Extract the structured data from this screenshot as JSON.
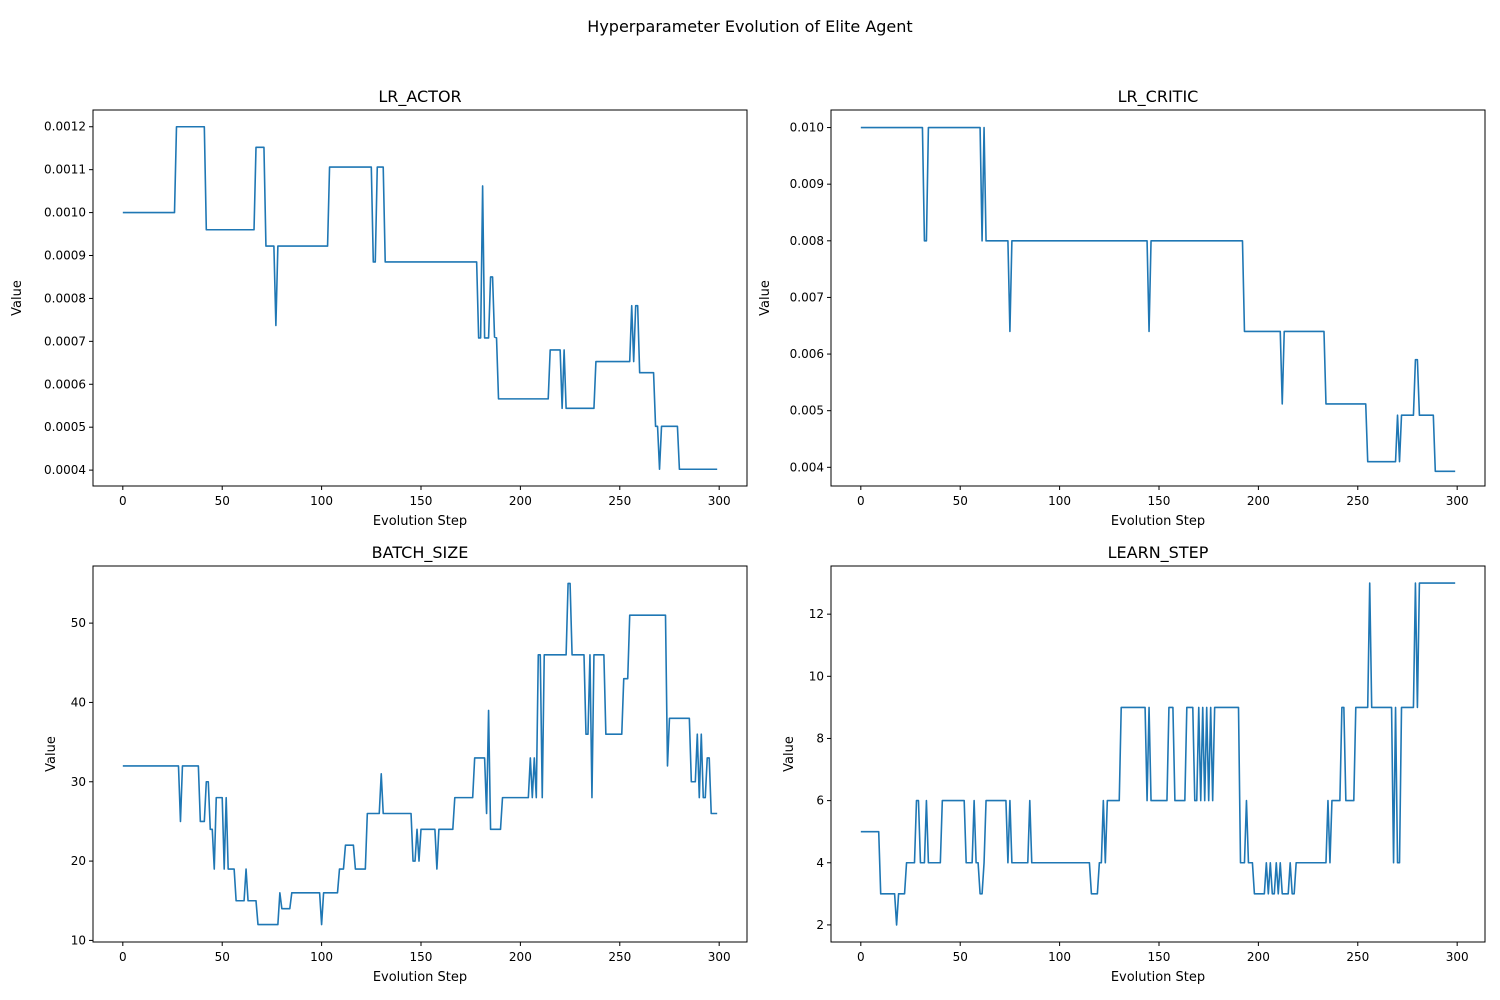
{
  "figure": {
    "title": "Hyperparameter Evolution of Elite Agent",
    "line_color": "#1f77b4"
  },
  "chart_data": [
    {
      "type": "line",
      "title": "LR_ACTOR",
      "xlabel": "Evolution Step",
      "ylabel": "Value",
      "xlim": [
        -15,
        314
      ],
      "ylim": [
        0.000363,
        0.001239
      ],
      "xticks": [
        0,
        50,
        100,
        150,
        200,
        250,
        300
      ],
      "yticks": [
        0.0004,
        0.0005,
        0.0006,
        0.0007,
        0.0008,
        0.0009,
        0.001,
        0.0011,
        0.0012
      ],
      "ytick_labels": [
        "0.0004",
        "0.0005",
        "0.0006",
        "0.0007",
        "0.0008",
        "0.0009",
        "0.0010",
        "0.0011",
        "0.0012"
      ],
      "grid": false,
      "n_steps": 300,
      "segments": [
        [
          0,
          0.001
        ],
        [
          27,
          0.0012
        ],
        [
          42,
          0.00096
        ],
        [
          67,
          0.001152
        ],
        [
          72,
          0.000922
        ],
        [
          77,
          0.000737
        ],
        [
          78,
          0.000922
        ],
        [
          104,
          0.001106
        ],
        [
          126,
          0.000885
        ],
        [
          128,
          0.001106
        ],
        [
          132,
          0.000885
        ],
        [
          179,
          0.000708
        ],
        [
          181,
          0.001062
        ],
        [
          182,
          0.000708
        ],
        [
          185,
          0.00085
        ],
        [
          187,
          0.00071
        ],
        [
          188,
          0.000708
        ],
        [
          189,
          0.000566
        ],
        [
          215,
          0.00068
        ],
        [
          221,
          0.000544
        ],
        [
          222,
          0.00068
        ],
        [
          223,
          0.000544
        ],
        [
          238,
          0.000653
        ],
        [
          256,
          0.000783
        ],
        [
          257,
          0.000653
        ],
        [
          258,
          0.000783
        ],
        [
          260,
          0.000627
        ],
        [
          268,
          0.000502
        ],
        [
          270,
          0.000402
        ],
        [
          271,
          0.000502
        ],
        [
          280,
          0.000402
        ]
      ]
    },
    {
      "type": "line",
      "title": "LR_CRITIC",
      "xlabel": "Evolution Step",
      "ylabel": "Value",
      "xlim": [
        -15,
        314
      ],
      "ylim": [
        0.00367,
        0.01031
      ],
      "xticks": [
        0,
        50,
        100,
        150,
        200,
        250,
        300
      ],
      "yticks": [
        0.004,
        0.005,
        0.006,
        0.007,
        0.008,
        0.009,
        0.01
      ],
      "ytick_labels": [
        "0.004",
        "0.005",
        "0.006",
        "0.007",
        "0.008",
        "0.009",
        "0.010"
      ],
      "grid": false,
      "n_steps": 300,
      "segments": [
        [
          0,
          0.01
        ],
        [
          32,
          0.008
        ],
        [
          34,
          0.01
        ],
        [
          61,
          0.008
        ],
        [
          62,
          0.01
        ],
        [
          63,
          0.008
        ],
        [
          75,
          0.0064
        ],
        [
          76,
          0.008
        ],
        [
          145,
          0.0064
        ],
        [
          146,
          0.008
        ],
        [
          193,
          0.0064
        ],
        [
          212,
          0.00512
        ],
        [
          213,
          0.0064
        ],
        [
          234,
          0.00512
        ],
        [
          255,
          0.0041
        ],
        [
          270,
          0.00492
        ],
        [
          271,
          0.0041
        ],
        [
          272,
          0.00492
        ],
        [
          279,
          0.0059
        ],
        [
          281,
          0.00492
        ],
        [
          289,
          0.00393
        ]
      ]
    },
    {
      "type": "line",
      "title": "BATCH_SIZE",
      "xlabel": "Evolution Step",
      "ylabel": "Value",
      "xlim": [
        -15,
        314
      ],
      "ylim": [
        9.8,
        57.2
      ],
      "xticks": [
        0,
        50,
        100,
        150,
        200,
        250,
        300
      ],
      "yticks": [
        10,
        20,
        30,
        40,
        50
      ],
      "ytick_labels": [
        "10",
        "20",
        "30",
        "40",
        "50"
      ],
      "grid": false,
      "n_steps": 300,
      "segments": [
        [
          0,
          32
        ],
        [
          29,
          25
        ],
        [
          30,
          32
        ],
        [
          39,
          25
        ],
        [
          42,
          30
        ],
        [
          43,
          30
        ],
        [
          44,
          24
        ],
        [
          46,
          19
        ],
        [
          47,
          28
        ],
        [
          51,
          19
        ],
        [
          52,
          28
        ],
        [
          53,
          19
        ],
        [
          57,
          15
        ],
        [
          62,
          19
        ],
        [
          63,
          15
        ],
        [
          68,
          12
        ],
        [
          79,
          16
        ],
        [
          80,
          14
        ],
        [
          85,
          16
        ],
        [
          100,
          12
        ],
        [
          101,
          16
        ],
        [
          109,
          19
        ],
        [
          112,
          22
        ],
        [
          117,
          19
        ],
        [
          123,
          26
        ],
        [
          130,
          31
        ],
        [
          131,
          26
        ],
        [
          146,
          20
        ],
        [
          148,
          24
        ],
        [
          149,
          20
        ],
        [
          150,
          24
        ],
        [
          158,
          19
        ],
        [
          159,
          24
        ],
        [
          167,
          28
        ],
        [
          177,
          33
        ],
        [
          183,
          26
        ],
        [
          184,
          39
        ],
        [
          185,
          24
        ],
        [
          191,
          28
        ],
        [
          205,
          33
        ],
        [
          206,
          28
        ],
        [
          207,
          33
        ],
        [
          208,
          28
        ],
        [
          209,
          46
        ],
        [
          211,
          28
        ],
        [
          212,
          46
        ],
        [
          224,
          55
        ],
        [
          226,
          46
        ],
        [
          233,
          36
        ],
        [
          235,
          46
        ],
        [
          236,
          28
        ],
        [
          237,
          46
        ],
        [
          243,
          36
        ],
        [
          252,
          43
        ],
        [
          255,
          51
        ],
        [
          274,
          32
        ],
        [
          275,
          38
        ],
        [
          286,
          30
        ],
        [
          289,
          36
        ],
        [
          290,
          28
        ],
        [
          291,
          36
        ],
        [
          292,
          28
        ],
        [
          294,
          33
        ],
        [
          296,
          26
        ]
      ]
    },
    {
      "type": "line",
      "title": "LEARN_STEP",
      "xlabel": "Evolution Step",
      "ylabel": "Value",
      "xlim": [
        -15,
        314
      ],
      "ylim": [
        1.45,
        13.55
      ],
      "xticks": [
        0,
        50,
        100,
        150,
        200,
        250,
        300
      ],
      "yticks": [
        2,
        4,
        6,
        8,
        10,
        12
      ],
      "ytick_labels": [
        "2",
        "4",
        "6",
        "8",
        "10",
        "12"
      ],
      "grid": false,
      "n_steps": 300,
      "segments": [
        [
          0,
          5
        ],
        [
          10,
          3
        ],
        [
          18,
          2
        ],
        [
          19,
          3
        ],
        [
          23,
          4
        ],
        [
          28,
          6
        ],
        [
          30,
          4
        ],
        [
          33,
          6
        ],
        [
          34,
          4
        ],
        [
          41,
          6
        ],
        [
          53,
          4
        ],
        [
          57,
          6
        ],
        [
          58,
          4
        ],
        [
          60,
          3
        ],
        [
          62,
          4
        ],
        [
          63,
          6
        ],
        [
          74,
          4
        ],
        [
          75,
          6
        ],
        [
          76,
          4
        ],
        [
          85,
          6
        ],
        [
          86,
          4
        ],
        [
          116,
          3
        ],
        [
          120,
          4
        ],
        [
          122,
          6
        ],
        [
          123,
          4
        ],
        [
          124,
          6
        ],
        [
          131,
          9
        ],
        [
          144,
          6
        ],
        [
          145,
          9
        ],
        [
          146,
          6
        ],
        [
          155,
          9
        ],
        [
          158,
          6
        ],
        [
          164,
          9
        ],
        [
          168,
          6
        ],
        [
          170,
          9
        ],
        [
          171,
          6
        ],
        [
          172,
          9
        ],
        [
          173,
          6
        ],
        [
          174,
          9
        ],
        [
          175,
          6
        ],
        [
          176,
          9
        ],
        [
          177,
          6
        ],
        [
          178,
          9
        ],
        [
          191,
          4
        ],
        [
          194,
          6
        ],
        [
          195,
          4
        ],
        [
          198,
          3
        ],
        [
          204,
          4
        ],
        [
          205,
          3
        ],
        [
          206,
          4
        ],
        [
          207,
          3
        ],
        [
          209,
          4
        ],
        [
          210,
          3
        ],
        [
          211,
          4
        ],
        [
          212,
          3
        ],
        [
          216,
          4
        ],
        [
          217,
          3
        ],
        [
          219,
          4
        ],
        [
          235,
          6
        ],
        [
          236,
          4
        ],
        [
          237,
          6
        ],
        [
          242,
          9
        ],
        [
          244,
          6
        ],
        [
          249,
          9
        ],
        [
          256,
          13
        ],
        [
          257,
          9
        ],
        [
          268,
          4
        ],
        [
          269,
          9
        ],
        [
          270,
          4
        ],
        [
          272,
          9
        ],
        [
          279,
          13
        ],
        [
          280,
          9
        ],
        [
          281,
          13
        ]
      ]
    }
  ]
}
